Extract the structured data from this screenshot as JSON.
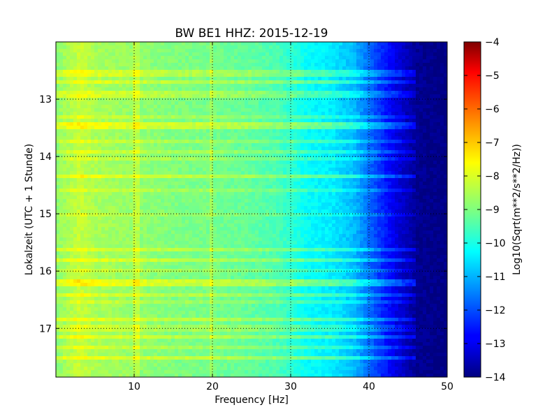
{
  "chart_data": {
    "type": "heatmap",
    "title": "BW BE1 HHZ: 2015-12-19",
    "xlabel": "Frequency [Hz]",
    "ylabel": "Lokalzeit (UTC + 1 Stunde)",
    "xlim": [
      0,
      50
    ],
    "ylim": [
      12.0,
      17.85
    ],
    "y_inverted": true,
    "grid": true,
    "x_ticks": [
      10,
      20,
      30,
      40,
      50
    ],
    "x_tick_labels": [
      "10",
      "20",
      "30",
      "40",
      "50"
    ],
    "y_ticks": [
      13,
      14,
      15,
      16,
      17
    ],
    "y_tick_labels": [
      "13",
      "14",
      "15",
      "16",
      "17"
    ],
    "colormap": "jet",
    "colorbar": {
      "label": "Log10(Sqrt(m**2/s**2/Hz))",
      "range": [
        -14,
        -4
      ],
      "ticks": [
        -4,
        -5,
        -6,
        -7,
        -8,
        -9,
        -10,
        -11,
        -12,
        -13,
        -14
      ],
      "tick_labels": [
        "−4",
        "−5",
        "−6",
        "−7",
        "−8",
        "−9",
        "−10",
        "−11",
        "−12",
        "−13",
        "−14"
      ]
    },
    "frequency_profile": {
      "frequency_hz": [
        0,
        3,
        5,
        10,
        15,
        20,
        25,
        28,
        30,
        32,
        35,
        38,
        40,
        42,
        44,
        46,
        50
      ],
      "log10_psd": [
        -8.9,
        -8.3,
        -8.6,
        -8.8,
        -9.0,
        -9.1,
        -9.3,
        -9.5,
        -9.8,
        -10.2,
        -10.4,
        -10.9,
        -11.7,
        -12.5,
        -13.2,
        -13.8,
        -14.0
      ]
    },
    "bands": [
      {
        "time": 12.55,
        "boost": 0.9
      },
      {
        "time": 12.68,
        "boost": 1.0
      },
      {
        "time": 12.92,
        "boost": 0.8
      },
      {
        "time": 13.3,
        "boost": 0.6
      },
      {
        "time": 13.45,
        "boost": 1.3
      },
      {
        "time": 13.5,
        "boost": 1.1
      },
      {
        "time": 13.75,
        "boost": 0.7
      },
      {
        "time": 13.92,
        "boost": 0.7
      },
      {
        "time": 14.05,
        "boost": 0.6
      },
      {
        "time": 14.35,
        "boost": 1.1
      },
      {
        "time": 14.6,
        "boost": 0.6
      },
      {
        "time": 15.0,
        "boost": 0.5
      },
      {
        "time": 15.65,
        "boost": 0.9
      },
      {
        "time": 15.8,
        "boost": 1.0
      },
      {
        "time": 15.97,
        "boost": 0.6
      },
      {
        "time": 16.2,
        "boost": 1.3
      },
      {
        "time": 16.25,
        "boost": 1.1
      },
      {
        "time": 16.4,
        "boost": 0.9
      },
      {
        "time": 16.55,
        "boost": 0.6
      },
      {
        "time": 16.85,
        "boost": 1.0
      },
      {
        "time": 17.0,
        "boost": 0.7
      },
      {
        "time": 17.17,
        "boost": 1.0
      },
      {
        "time": 17.35,
        "boost": 0.7
      },
      {
        "time": 17.5,
        "boost": 1.1
      }
    ]
  }
}
